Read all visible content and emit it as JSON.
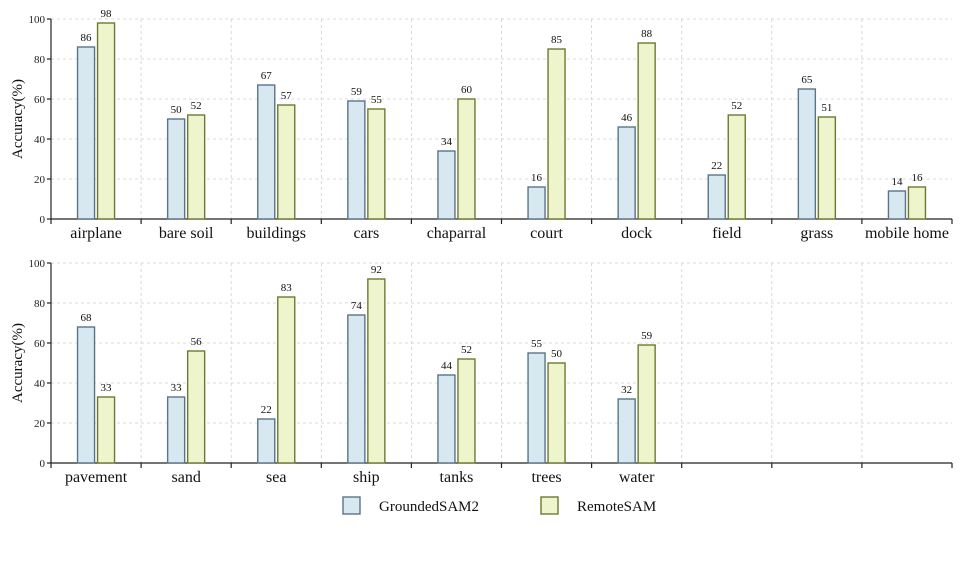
{
  "chart_data": [
    {
      "type": "bar",
      "title": "",
      "xlabel": "",
      "ylabel": "Accuracy(%)",
      "ylim": [
        0,
        100
      ],
      "yticks": [
        0,
        20,
        40,
        60,
        80,
        100
      ],
      "grid": true,
      "categories": [
        "airplane",
        "bare soil",
        "buildings",
        "cars",
        "chaparral",
        "court",
        "dock",
        "field",
        "grass",
        "mobile home"
      ],
      "series": [
        {
          "name": "GroundedSAM2",
          "values": [
            86,
            50,
            67,
            59,
            34,
            16,
            46,
            22,
            65,
            14
          ]
        },
        {
          "name": "RemoteSAM",
          "values": [
            98,
            52,
            57,
            55,
            60,
            85,
            88,
            52,
            51,
            16
          ]
        }
      ],
      "data_labels": [
        [
          "86",
          "50",
          "67",
          "59",
          "34",
          "16",
          "46",
          "22",
          "65",
          "14"
        ],
        [
          "98",
          "52",
          "57",
          "55",
          "60",
          "85",
          "88",
          "52",
          "51",
          "16"
        ]
      ]
    },
    {
      "type": "bar",
      "title": "",
      "xlabel": "",
      "ylabel": "Accuracy(%)",
      "ylim": [
        0,
        100
      ],
      "yticks": [
        0,
        20,
        40,
        60,
        80,
        100
      ],
      "grid": true,
      "slots": 10,
      "categories": [
        "pavement",
        "sand",
        "sea",
        "ship",
        "tanks",
        "trees",
        "water"
      ],
      "series": [
        {
          "name": "GroundedSAM2",
          "values": [
            68,
            33,
            22,
            74,
            44,
            55,
            32
          ]
        },
        {
          "name": "RemoteSAM",
          "values": [
            33,
            56,
            83,
            92,
            52,
            50,
            59
          ]
        }
      ],
      "data_labels": [
        [
          "68",
          "33",
          "22",
          "74",
          "44",
          "55",
          "32"
        ],
        [
          "33",
          "56",
          "83",
          "92",
          "52",
          "50",
          "59"
        ]
      ]
    }
  ],
  "legend": {
    "position": "bottom-center",
    "items": [
      {
        "label": "GroundedSAM2",
        "fill": "#d8e8f0",
        "stroke": "#5a7488"
      },
      {
        "label": "RemoteSAM",
        "fill": "#eef4cc",
        "stroke": "#6b7a32"
      }
    ]
  },
  "colors": {
    "series_fill": [
      "#d8e8f0",
      "#eef4cc"
    ],
    "series_stroke": [
      "#5a7488",
      "#6b7a32"
    ]
  }
}
